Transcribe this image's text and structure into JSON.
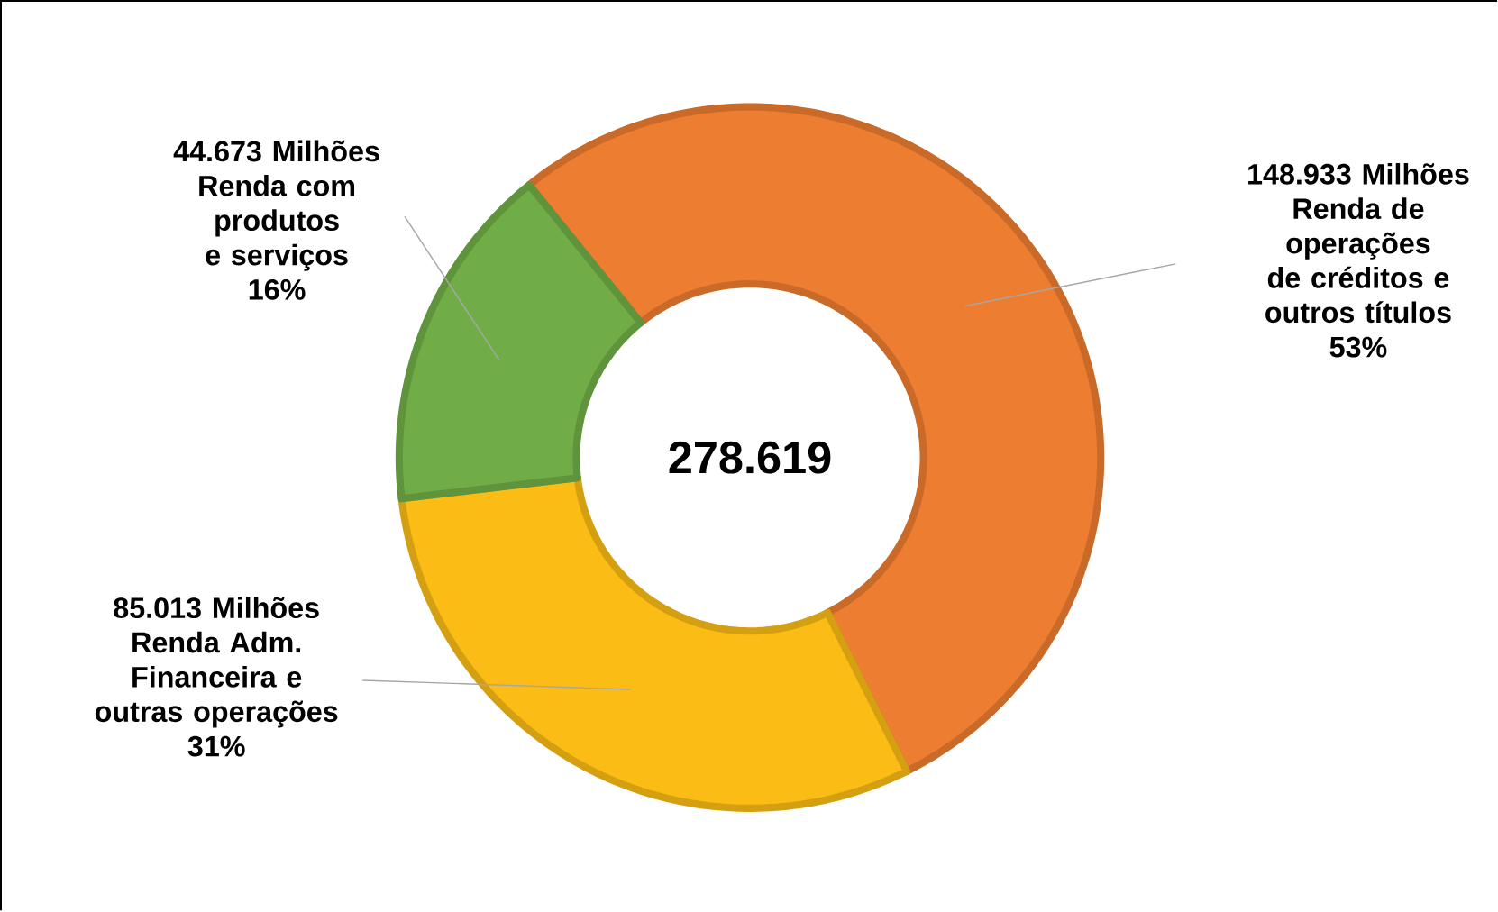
{
  "chart_data": {
    "type": "donut",
    "categories": [
      "Renda de operações de créditos e outros títulos",
      "Renda Adm. Financeira e outras operações",
      "Renda com produtos e serviços"
    ],
    "values": [
      148933,
      85013,
      44673
    ],
    "value_labels": [
      "148.933 Milhões",
      "85.013 Milhões",
      "44.673 Milhões"
    ],
    "colors": [
      "#ed7d31",
      "#fbbc16",
      "#70ad47"
    ],
    "annotations": [
      "278.619",
      "53%",
      "31%",
      "16%"
    ]
  }
}
